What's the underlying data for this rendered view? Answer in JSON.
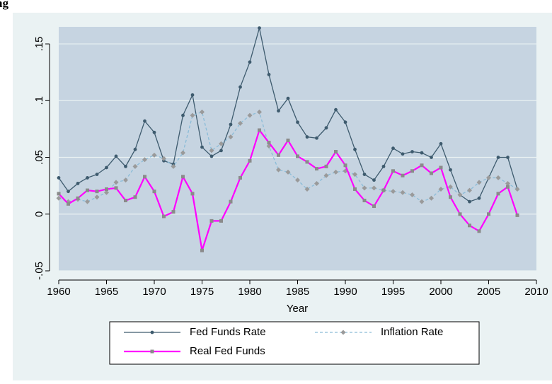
{
  "chart_data": {
    "type": "line",
    "title": "ng",
    "xlabel": "Year",
    "x": [
      1960,
      1961,
      1962,
      1963,
      1964,
      1965,
      1966,
      1967,
      1968,
      1969,
      1970,
      1971,
      1972,
      1973,
      1974,
      1975,
      1976,
      1977,
      1978,
      1979,
      1980,
      1981,
      1982,
      1983,
      1984,
      1985,
      1986,
      1987,
      1988,
      1989,
      1990,
      1991,
      1992,
      1993,
      1994,
      1995,
      1996,
      1997,
      1998,
      1999,
      2000,
      2001,
      2002,
      2003,
      2004,
      2005,
      2006,
      2007,
      2008
    ],
    "series": [
      {
        "name": "Fed Funds Rate",
        "color": "#3e5b6e",
        "marker_color": "#3e5b6e",
        "marker": "circle",
        "dash": false,
        "values": [
          0.032,
          0.02,
          0.027,
          0.032,
          0.035,
          0.041,
          0.051,
          0.042,
          0.057,
          0.082,
          0.072,
          0.047,
          0.044,
          0.087,
          0.105,
          0.059,
          0.051,
          0.056,
          0.079,
          0.112,
          0.134,
          0.164,
          0.123,
          0.091,
          0.102,
          0.081,
          0.068,
          0.067,
          0.076,
          0.092,
          0.081,
          0.057,
          0.035,
          0.03,
          0.042,
          0.058,
          0.053,
          0.055,
          0.054,
          0.05,
          0.062,
          0.039,
          0.017,
          0.011,
          0.014,
          0.032,
          0.05,
          0.05,
          0.022
        ]
      },
      {
        "name": "Inflation Rate",
        "color": "#8bbcd8",
        "marker_color": "#9a9a9a",
        "marker": "diamond",
        "dash": true,
        "values": [
          0.014,
          0.011,
          0.013,
          0.011,
          0.015,
          0.019,
          0.028,
          0.03,
          0.042,
          0.048,
          0.052,
          0.049,
          0.042,
          0.054,
          0.087,
          0.09,
          0.056,
          0.062,
          0.068,
          0.08,
          0.087,
          0.09,
          0.06,
          0.039,
          0.037,
          0.03,
          0.022,
          0.027,
          0.034,
          0.037,
          0.038,
          0.035,
          0.023,
          0.023,
          0.021,
          0.02,
          0.019,
          0.017,
          0.011,
          0.014,
          0.022,
          0.024,
          0.017,
          0.021,
          0.028,
          0.032,
          0.032,
          0.027,
          0.022
        ]
      },
      {
        "name": "Real Fed Funds",
        "color": "#ff00ff",
        "marker_color": "#8a8a8a",
        "marker": "square",
        "dash": false,
        "values": [
          0.018,
          0.009,
          0.014,
          0.021,
          0.02,
          0.022,
          0.023,
          0.012,
          0.015,
          0.033,
          0.02,
          -0.002,
          0.002,
          0.033,
          0.018,
          -0.032,
          -0.006,
          -0.006,
          0.011,
          0.032,
          0.047,
          0.074,
          0.063,
          0.052,
          0.065,
          0.051,
          0.046,
          0.04,
          0.042,
          0.055,
          0.043,
          0.022,
          0.012,
          0.007,
          0.021,
          0.038,
          0.034,
          0.038,
          0.043,
          0.036,
          0.041,
          0.015,
          0.0,
          -0.01,
          -0.015,
          0.0,
          0.018,
          0.024,
          -0.001
        ]
      }
    ],
    "xlim": [
      1960,
      2010
    ],
    "xticks": [
      1960,
      1965,
      1970,
      1975,
      1980,
      1985,
      1990,
      1995,
      2000,
      2005,
      2010
    ],
    "ylim": [
      -0.05,
      0.165
    ],
    "yticks": [
      {
        "value": -0.05,
        "label": "-.05"
      },
      0,
      {
        "value": 0.05,
        "label": ".05"
      },
      {
        "value": 0.1,
        "label": ".1"
      },
      {
        "value": 0.15,
        "label": ".15"
      }
    ],
    "grid": true,
    "legend": "bottom"
  }
}
